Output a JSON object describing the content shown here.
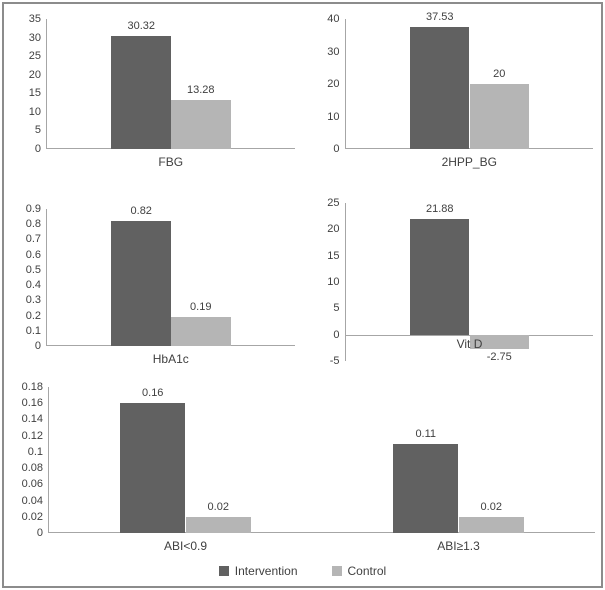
{
  "figure": {
    "description": "Panel of five grayscale bar charts comparing Intervention and Control groups",
    "panel_count": 5
  },
  "colors": {
    "intervention": "#616161",
    "control": "#b5b5b5",
    "axis_line": "#a6a6a6",
    "text": "#404040",
    "frame_border": "#8c8c8c"
  },
  "legend": {
    "position": "bottom-center",
    "items": [
      {
        "label": "Intervention",
        "color": "#616161"
      },
      {
        "label": "Control",
        "color": "#b5b5b5"
      }
    ]
  },
  "chart_data": [
    {
      "type": "bar",
      "title": "",
      "categories": [
        "FBG"
      ],
      "ylim": [
        0,
        35
      ],
      "yticks": [
        "0",
        "5",
        "10",
        "15",
        "20",
        "25",
        "30",
        "35"
      ],
      "grid": false,
      "series": [
        {
          "name": "Intervention",
          "values": [
            30.32
          ],
          "labels": [
            "30.32"
          ]
        },
        {
          "name": "Control",
          "values": [
            13.28
          ],
          "labels": [
            "13.28"
          ]
        }
      ]
    },
    {
      "type": "bar",
      "title": "",
      "categories": [
        "2HPP_BG"
      ],
      "ylim": [
        0,
        40
      ],
      "yticks": [
        "0",
        "10",
        "20",
        "30",
        "40"
      ],
      "grid": false,
      "series": [
        {
          "name": "Intervention",
          "values": [
            37.53
          ],
          "labels": [
            "37.53"
          ]
        },
        {
          "name": "Control",
          "values": [
            20
          ],
          "labels": [
            "20"
          ]
        }
      ]
    },
    {
      "type": "bar",
      "title": "",
      "categories": [
        "HbA1c"
      ],
      "ylim": [
        0,
        0.9
      ],
      "yticks": [
        "0",
        "0.1",
        "0.2",
        "0.3",
        "0.4",
        "0.5",
        "0.6",
        "0.7",
        "0.8",
        "0.9"
      ],
      "grid": false,
      "series": [
        {
          "name": "Intervention",
          "values": [
            0.82
          ],
          "labels": [
            "0.82"
          ]
        },
        {
          "name": "Control",
          "values": [
            0.19
          ],
          "labels": [
            "0.19"
          ]
        }
      ]
    },
    {
      "type": "bar",
      "title": "",
      "categories": [
        "Vit D"
      ],
      "ylim": [
        -5,
        25
      ],
      "yticks": [
        "-5",
        "0",
        "5",
        "10",
        "15",
        "20",
        "25"
      ],
      "grid": false,
      "series": [
        {
          "name": "Intervention",
          "values": [
            21.88
          ],
          "labels": [
            "21.88"
          ]
        },
        {
          "name": "Control",
          "values": [
            -2.75
          ],
          "labels": [
            "-2.75"
          ]
        }
      ]
    },
    {
      "type": "bar",
      "title": "",
      "categories": [
        "ABI<0.9",
        "ABI≥1.3"
      ],
      "ylim": [
        0,
        0.18
      ],
      "yticks": [
        "0",
        "0.02",
        "0.04",
        "0.06",
        "0.08",
        "0.1",
        "0.12",
        "0.14",
        "0.16",
        "0.18"
      ],
      "grid": false,
      "series": [
        {
          "name": "Intervention",
          "values": [
            0.16,
            0.11
          ],
          "labels": [
            "0.16",
            "0.11"
          ]
        },
        {
          "name": "Control",
          "values": [
            0.02,
            0.02
          ],
          "labels": [
            "0.02",
            "0.02"
          ]
        }
      ]
    }
  ]
}
